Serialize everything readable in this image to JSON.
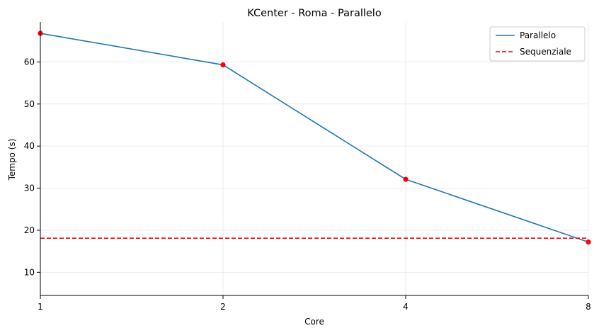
{
  "chart_data": {
    "type": "line",
    "title": "KCenter - Roma - Parallelo",
    "xlabel": "Core",
    "ylabel": "Tempo (s)",
    "x": [
      1,
      2,
      4,
      8
    ],
    "x_tick_labels": [
      "1",
      "2",
      "4",
      "8"
    ],
    "x_scale": "categorical-equal-spacing",
    "ylim": [
      4.5,
      69.5
    ],
    "y_ticks": [
      10,
      20,
      30,
      40,
      50,
      60
    ],
    "grid": true,
    "legend_position": "top-right",
    "series": [
      {
        "name": "Parallelo",
        "values": [
          66.8,
          59.3,
          32.1,
          17.2
        ],
        "color": "#1f77b4",
        "linestyle": "solid",
        "marker": "circle",
        "marker_color": "#ff0000"
      },
      {
        "name": "Sequenziale",
        "constant": 18.1,
        "color": "#ff0000",
        "linestyle": "dashed"
      }
    ]
  }
}
